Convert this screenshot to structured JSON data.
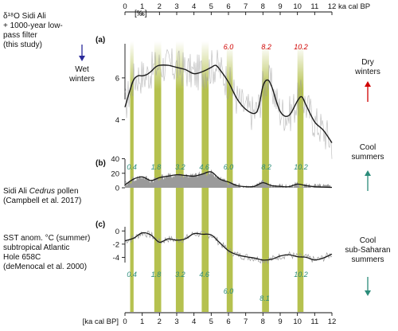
{
  "top_axis_unit": "ka cal BP",
  "bottom_axis_unit": "[ka cal BP]",
  "bottom_axis_tail_label": "[ka cal BP]",
  "colors": {
    "band": "#b5c14f",
    "gray": "#9a9a9a",
    "black": "#1a1a1a",
    "red": "#d00000",
    "blue": "#2a2a9a",
    "teal": "#2b8c7a"
  },
  "panels": [
    {
      "letter": "(a)",
      "title_lines": [
        "δ¹⁸O Sidi Ali",
        "+ 1000-year low-",
        "pass filter",
        "(this study)"
      ],
      "unit": "[‰]",
      "y_ticks": [
        "6",
        "4"
      ],
      "left_note": {
        "text_lines": [
          "Wet",
          "winters"
        ],
        "color_key": "blue",
        "arrow": "down"
      },
      "right_note": {
        "text_lines": [
          "Dry",
          "winters"
        ],
        "color_key": "red",
        "arrow": "up"
      },
      "event_labels": [
        {
          "x": 6.0,
          "text": "6.0"
        },
        {
          "x": 8.2,
          "text": "8.2"
        },
        {
          "x": 10.2,
          "text": "10.2"
        }
      ]
    },
    {
      "letter": "(b)",
      "title_lines": [
        "Sidi Ali Cedrus pollen",
        "(Campbell et al. 2017)"
      ],
      "y_ticks": [
        "40",
        "20",
        "0"
      ],
      "right_note": {
        "text_lines": [
          "Cool",
          "summers"
        ],
        "color_key": "teal",
        "arrow": "up"
      },
      "event_labels": [
        {
          "x": 0.4,
          "text": "0.4"
        },
        {
          "x": 1.8,
          "text": "1.8"
        },
        {
          "x": 3.2,
          "text": "3.2"
        },
        {
          "x": 4.6,
          "text": "4.6"
        },
        {
          "x": 6.0,
          "text": "6.0"
        },
        {
          "x": 8.2,
          "text": "8.2"
        },
        {
          "x": 10.2,
          "text": "10.2"
        }
      ]
    },
    {
      "letter": "(c)",
      "title_lines": [
        "SST anom. °C (summer)",
        "subtropical Atlantic",
        "Hole 658C",
        "(deMenocal et al. 2000)"
      ],
      "y_ticks": [
        "0",
        "-2",
        "-4"
      ],
      "right_note": {
        "text_lines": [
          "Cool",
          "sub-Saharan",
          "summers"
        ],
        "color_key": "teal",
        "arrow": "down"
      },
      "event_labels": [
        {
          "x": 0.4,
          "text": "0.4"
        },
        {
          "x": 1.8,
          "text": "1.8"
        },
        {
          "x": 3.2,
          "text": "3.2"
        },
        {
          "x": 4.6,
          "text": "4.6"
        },
        {
          "x": 6.0,
          "text": "6.0"
        },
        {
          "x": 8.1,
          "text": "8.1"
        },
        {
          "x": 10.2,
          "text": "10.2"
        }
      ]
    }
  ],
  "chart_data": {
    "type": "line",
    "x_unit": "ka cal BP",
    "xlim": [
      0,
      12
    ],
    "x_ticks": [
      0,
      1,
      2,
      3,
      4,
      5,
      6,
      7,
      8,
      9,
      10,
      11,
      12
    ],
    "event_bands_ka": [
      [
        0.3,
        0.5
      ],
      [
        1.7,
        2.1
      ],
      [
        2.95,
        3.4
      ],
      [
        4.45,
        4.85
      ],
      [
        5.9,
        6.25
      ],
      [
        7.95,
        8.35
      ],
      [
        10.0,
        10.35
      ]
    ],
    "series": [
      {
        "panel": 0,
        "name": "δ¹⁸O Sidi Ali (1000-year low-pass)",
        "ylim": [
          2.5,
          8.2
        ],
        "x": [
          0,
          0.25,
          0.5,
          0.75,
          1,
          1.25,
          1.5,
          1.75,
          2,
          2.5,
          3,
          3.5,
          4,
          4.5,
          5,
          5.25,
          5.5,
          6,
          6.5,
          7,
          7.5,
          7.75,
          8,
          8.25,
          8.5,
          9,
          9.5,
          10,
          10.25,
          10.5,
          11,
          11.5,
          12
        ],
        "y": [
          4.6,
          5.3,
          5.9,
          6.1,
          6.1,
          6.15,
          6.3,
          6.5,
          6.6,
          6.6,
          6.5,
          6.4,
          6.2,
          6.3,
          6.5,
          6.6,
          6.4,
          5.8,
          5.0,
          4.5,
          4.3,
          4.6,
          5.6,
          5.9,
          5.6,
          4.4,
          4.2,
          4.9,
          5.1,
          4.7,
          3.9,
          3.5,
          2.9
        ]
      },
      {
        "panel": 1,
        "name": "Sidi Ali Cedrus pollen",
        "ylim": [
          0,
          45
        ],
        "x": [
          0,
          0.5,
          1,
          1.5,
          2,
          2.5,
          3,
          3.5,
          4,
          4.5,
          5,
          5.5,
          6,
          6.5,
          7,
          7.5,
          8,
          8.5,
          9,
          9.5,
          10,
          10.5,
          11,
          11.5,
          12
        ],
        "y": [
          4,
          12,
          15,
          10,
          14,
          16,
          18,
          17,
          16,
          19,
          22,
          12,
          8,
          3,
          1.5,
          2,
          7,
          3,
          2,
          1.5,
          5,
          3,
          1.5,
          1,
          0.5
        ]
      },
      {
        "panel": 2,
        "name": "SST anom. °C (summer) Hole 658C",
        "ylim": [
          -6.6,
          2.2
        ],
        "x": [
          0,
          0.5,
          1,
          1.5,
          2,
          2.5,
          3,
          3.5,
          4,
          4.5,
          5,
          5.5,
          6,
          6.5,
          7,
          7.5,
          8,
          8.5,
          9,
          9.5,
          10,
          10.5,
          11,
          11.5,
          12
        ],
        "y": [
          -1.5,
          -1.1,
          -0.3,
          -0.6,
          -1.7,
          -1.2,
          -1.4,
          -1.2,
          -0.4,
          -0.5,
          -0.6,
          -1.8,
          -3.0,
          -3.6,
          -3.9,
          -4.1,
          -4.4,
          -4.3,
          -3.8,
          -3.6,
          -3.9,
          -4.0,
          -4.4,
          -4.1,
          -3.5
        ]
      }
    ]
  }
}
